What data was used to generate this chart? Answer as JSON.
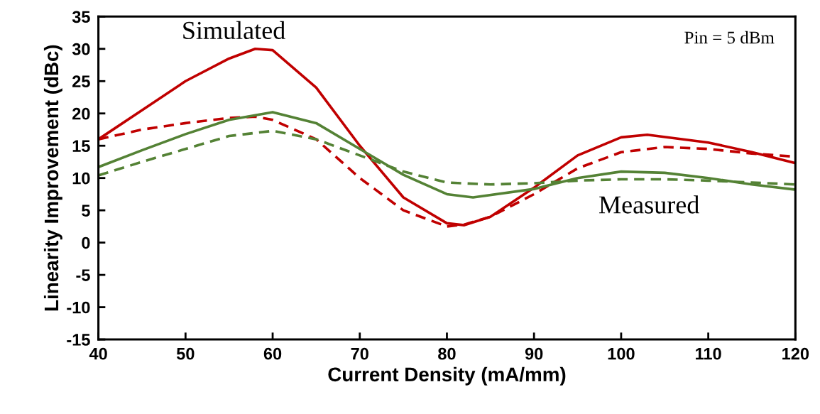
{
  "chart_data": {
    "type": "line",
    "xlabel": "Current Density (mA/mm)",
    "ylabel": "Linearity Improvement (dBc)",
    "xlim": [
      40,
      120
    ],
    "xticks": [
      40,
      50,
      60,
      70,
      80,
      90,
      100,
      110,
      120
    ],
    "ylim": [
      -15,
      35
    ],
    "yticks": [
      -15,
      -10,
      -5,
      0,
      5,
      10,
      15,
      20,
      25,
      30,
      35
    ],
    "grid": false,
    "legend": false,
    "marker": "none",
    "series": [
      {
        "color": "#c00000",
        "line_style": "solid",
        "x": [
          40,
          45,
          50,
          55,
          58,
          60,
          65,
          70,
          75,
          80,
          82,
          85,
          90,
          95,
          100,
          103,
          110,
          115,
          120
        ],
        "values": [
          16,
          20.5,
          25,
          28.5,
          30,
          29.8,
          24,
          15,
          7,
          3,
          2.7,
          4,
          8.5,
          13.5,
          16.3,
          16.7,
          15.5,
          14,
          12.3
        ]
      },
      {
        "color": "#c00000",
        "line_style": "dashed",
        "x": [
          40,
          45,
          50,
          55,
          58,
          60,
          65,
          70,
          75,
          80,
          82,
          85,
          90,
          95,
          100,
          105,
          110,
          115,
          120
        ],
        "values": [
          16,
          17.5,
          18.5,
          19.3,
          19.5,
          19,
          16,
          10,
          5,
          2.5,
          2.8,
          4,
          7.5,
          11.5,
          14,
          14.8,
          14.5,
          13.8,
          13.3
        ]
      },
      {
        "color": "#548235",
        "line_style": "solid",
        "x": [
          40,
          45,
          50,
          55,
          60,
          65,
          70,
          75,
          80,
          83,
          90,
          95,
          100,
          105,
          110,
          115,
          120
        ],
        "values": [
          11.7,
          14.3,
          16.8,
          19,
          20.2,
          18.5,
          14.5,
          10.5,
          7.5,
          7,
          8.3,
          10,
          11,
          10.8,
          10,
          9,
          8.2
        ]
      },
      {
        "color": "#548235",
        "line_style": "dashed",
        "x": [
          40,
          45,
          50,
          55,
          60,
          65,
          70,
          75,
          80,
          85,
          90,
          95,
          100,
          105,
          110,
          115,
          120
        ],
        "values": [
          10.4,
          12.5,
          14.5,
          16.5,
          17.3,
          16,
          13.5,
          11,
          9.3,
          9,
          9.2,
          9.6,
          9.8,
          9.8,
          9.6,
          9.3,
          9
        ]
      }
    ],
    "annotations": [
      "Simulated",
      "Measured",
      "Pin = 5 dBm"
    ]
  }
}
